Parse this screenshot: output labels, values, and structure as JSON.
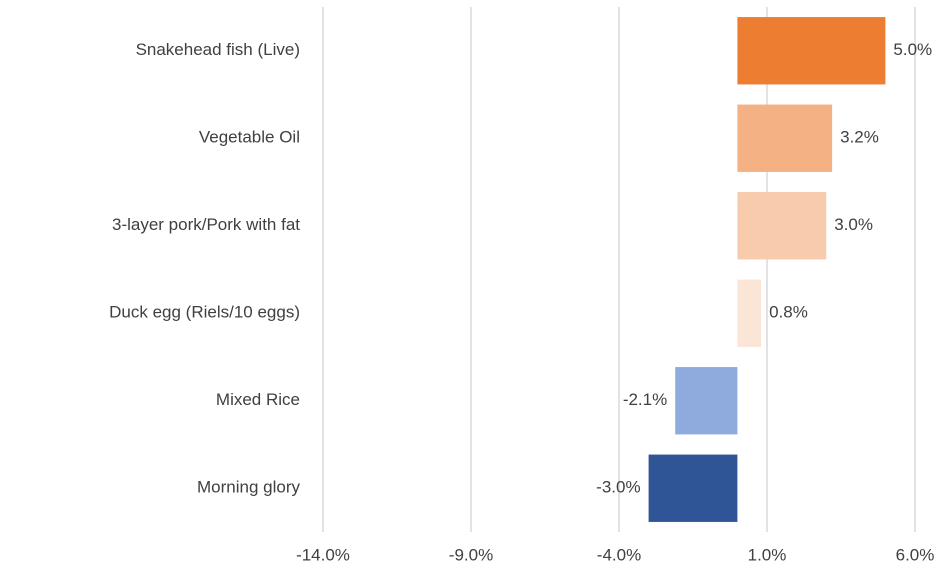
{
  "chart_data": {
    "type": "hbar",
    "categories": [
      "Snakehead fish (Live)",
      "Vegetable Oil",
      "3-layer pork/Pork with fat",
      "Duck egg (Riels/10 eggs)",
      "Mixed Rice",
      "Morning glory"
    ],
    "values": [
      5.0,
      3.2,
      3.0,
      0.8,
      -2.1,
      -3.0
    ],
    "value_labels": [
      "5.0%",
      "3.2%",
      "3.0%",
      "0.8%",
      "-2.1%",
      "-3.0%"
    ],
    "colors": [
      "#ed7d31",
      "#f4b183",
      "#f8cbad",
      "#fbe5d6",
      "#8faadc",
      "#2f5597"
    ],
    "xlim": [
      -14,
      6
    ],
    "xticks": [
      {
        "value": -14,
        "label": "-14.0%"
      },
      {
        "value": -9,
        "label": "-9.0%"
      },
      {
        "value": -4,
        "label": "-4.0%"
      },
      {
        "value": 1,
        "label": "1.0%"
      },
      {
        "value": 6,
        "label": "6.0%"
      }
    ],
    "grid": true
  }
}
